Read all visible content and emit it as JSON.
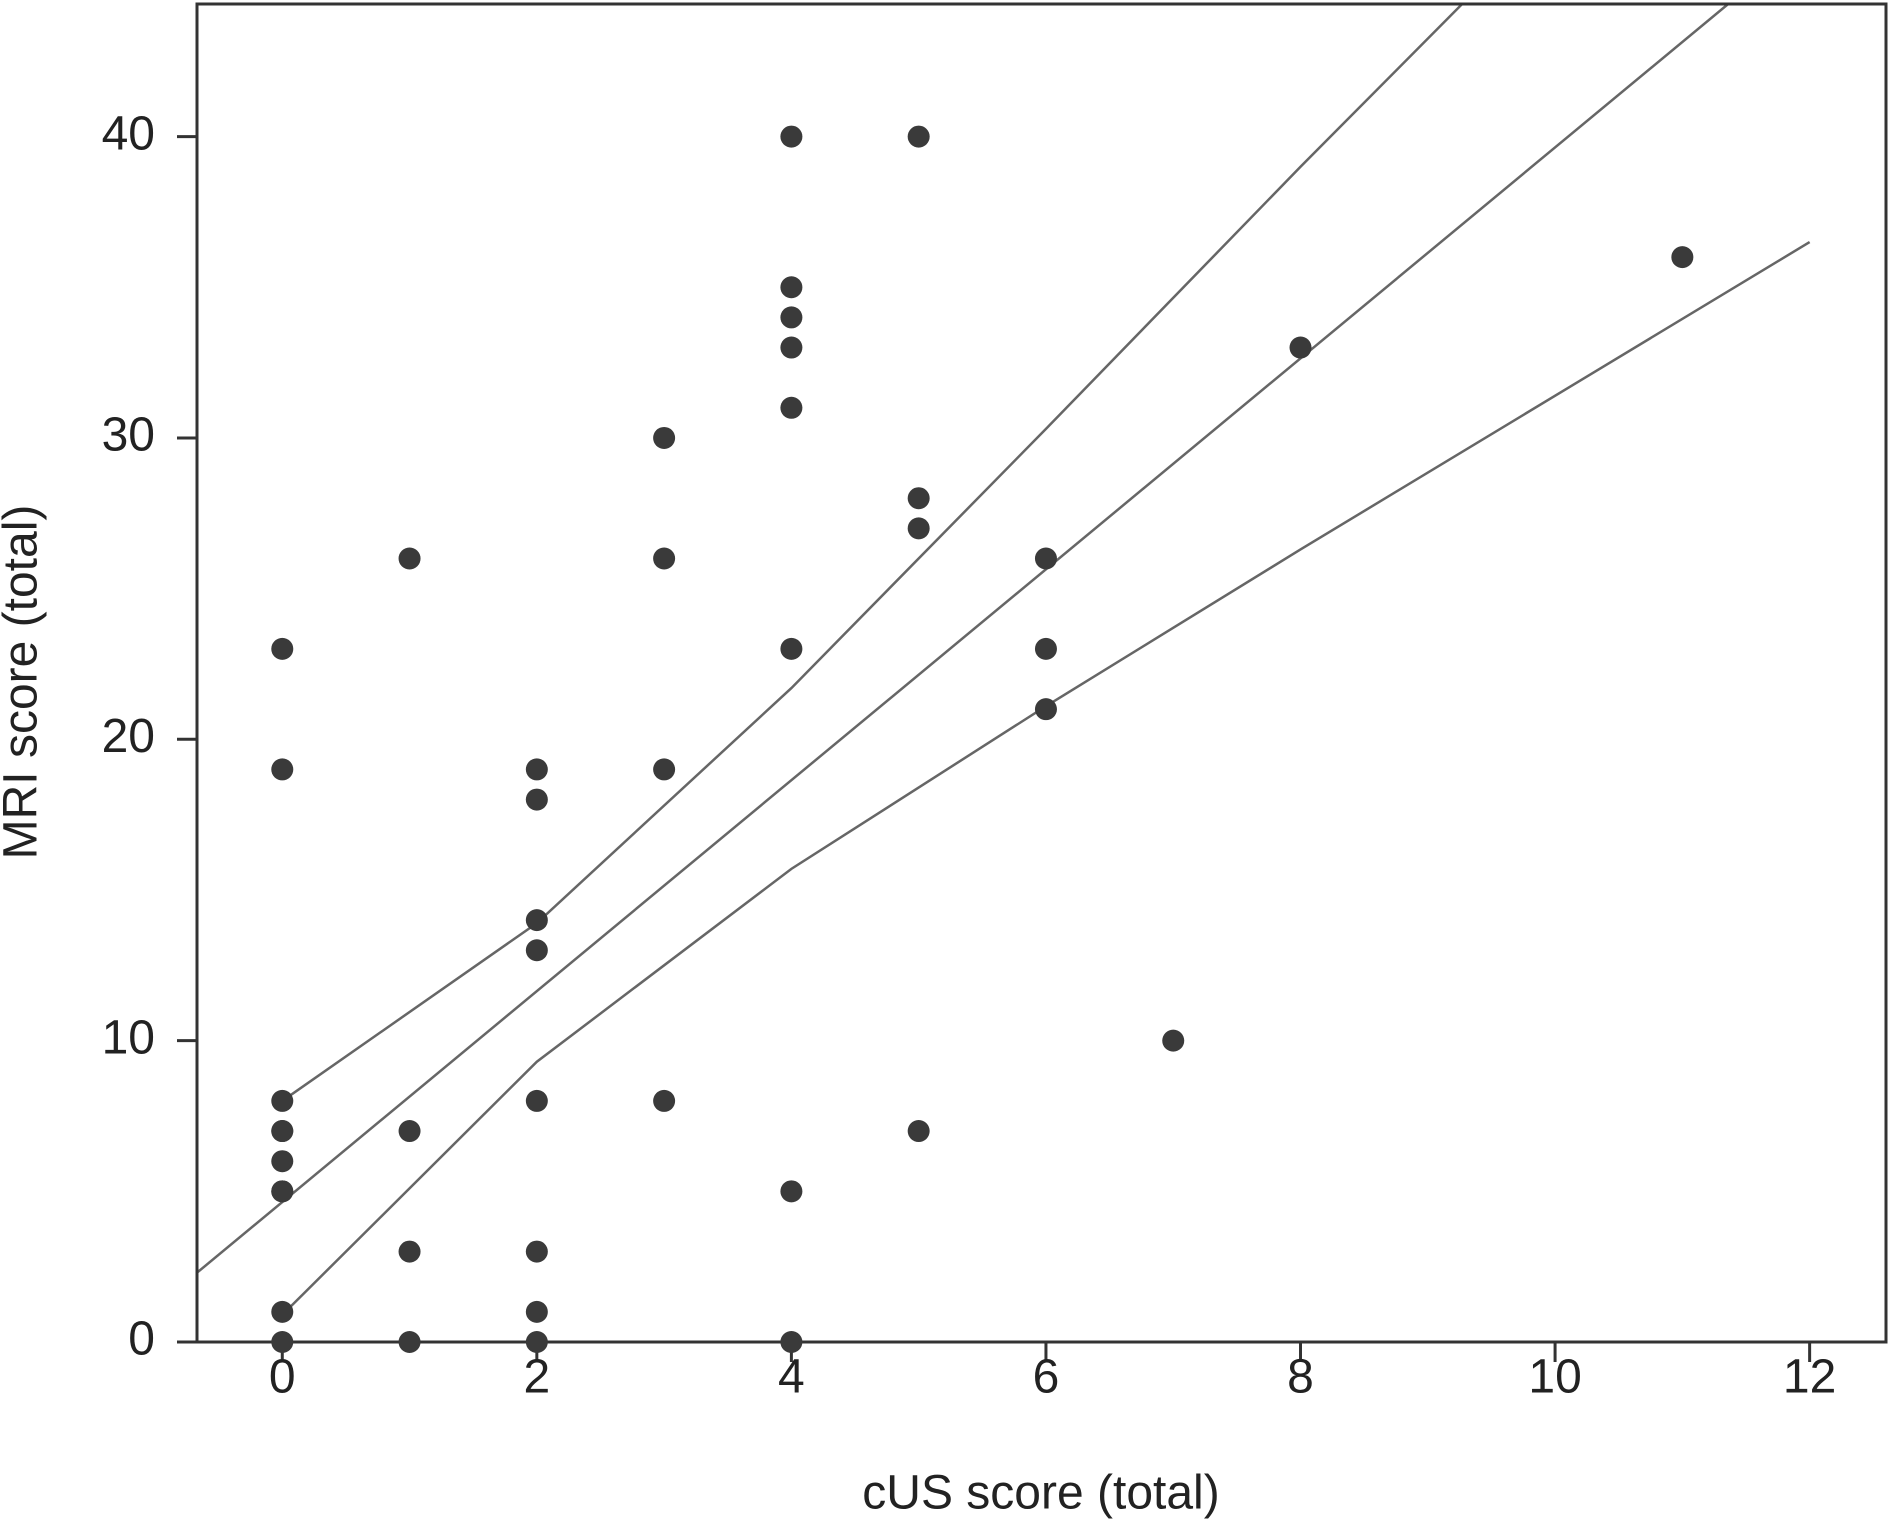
{
  "chart_data": {
    "type": "scatter",
    "xlabel": "cUS score (total)",
    "ylabel": "MRI score (total)",
    "x": [
      0,
      0,
      0,
      0,
      0,
      0,
      0,
      0,
      0,
      0,
      1,
      1,
      1,
      1,
      2,
      2,
      2,
      2,
      2,
      2,
      2,
      2,
      3,
      3,
      3,
      3,
      4,
      4,
      4,
      4,
      4,
      4,
      4,
      4,
      5,
      5,
      5,
      5,
      6,
      6,
      6,
      7,
      8,
      11
    ],
    "values": [
      23,
      19,
      8,
      7,
      7,
      6,
      5,
      5,
      1,
      0,
      26,
      7,
      3,
      0,
      19,
      18,
      14,
      13,
      8,
      3,
      1,
      0,
      30,
      26,
      19,
      8,
      40,
      35,
      34,
      33,
      31,
      23,
      5,
      0,
      40,
      28,
      27,
      7,
      26,
      23,
      21,
      10,
      33,
      36
    ],
    "color": "#3a3a3a",
    "lines": [
      {
        "color": "#666666",
        "x": [
          -0.67,
          11.36
        ],
        "values": [
          2.3,
          44.4
        ]
      },
      {
        "color": "#666666",
        "x": [
          0,
          2,
          4,
          6,
          8,
          9.27
        ],
        "values": [
          8.0,
          13.9,
          21.7,
          30.3,
          39,
          44.4
        ]
      },
      {
        "color": "#666666",
        "x": [
          0,
          2,
          4,
          6,
          8,
          12
        ],
        "values": [
          0.9,
          9.3,
          15.7,
          21.1,
          26.3,
          36.5
        ]
      }
    ],
    "xlim": [
      -0.67,
      12.6
    ],
    "ylim": [
      0,
      44.4
    ],
    "xticks": [
      0,
      2,
      4,
      6,
      8,
      10,
      12
    ],
    "yticks": [
      0,
      10,
      20,
      30,
      40
    ]
  }
}
